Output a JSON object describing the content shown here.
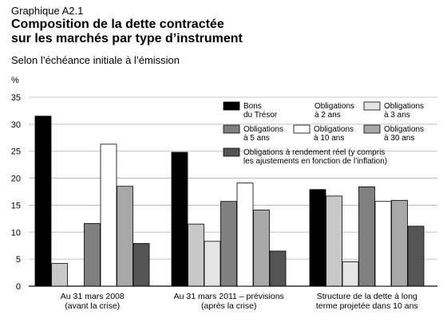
{
  "graphic_label": "Graphique  A2.1",
  "title_line1": "Composition de la dette contractée",
  "title_line2": "sur les marchés par type d’instrument",
  "subtitle": "Selon l’échéance initiale à l’émission",
  "chart_data": {
    "type": "bar",
    "ylabel": "%",
    "ylim": [
      0,
      35
    ],
    "yticks": [
      0,
      5,
      10,
      15,
      20,
      25,
      30,
      35
    ],
    "grid": true,
    "legend_position": "top-right",
    "categories": [
      [
        "Au 31 mars 2008",
        "(avant la crise)"
      ],
      [
        "Au 31 mars 2011 – prévisions",
        "(après la crise)"
      ],
      [
        "Structure de la dette à long",
        "terme projetée dans 10 ans"
      ]
    ],
    "series": [
      {
        "name": [
          "Bons",
          "du Trésor"
        ],
        "color": "#000000",
        "values": [
          31.5,
          24.8,
          17.9
        ]
      },
      {
        "name": [
          "Obligations",
          "à 2 ans"
        ],
        "color": "#c8c8c8",
        "values": [
          4.2,
          11.5,
          16.7
        ]
      },
      {
        "name": [
          "Obligations",
          "à 3 ans"
        ],
        "color": "#e4e4e4",
        "values": [
          0,
          8.3,
          4.5
        ]
      },
      {
        "name": [
          "Obligations",
          "à 5 ans"
        ],
        "color": "#808080",
        "values": [
          11.6,
          15.7,
          18.4
        ]
      },
      {
        "name": [
          "Obligations",
          "à 10 ans"
        ],
        "color": "#ffffff",
        "values": [
          26.3,
          19.1,
          15.7
        ]
      },
      {
        "name": [
          "Obligations",
          "à 30 ans"
        ],
        "color": "#a8a8a8",
        "values": [
          18.5,
          14.1,
          15.9
        ]
      },
      {
        "name": [
          "Obligations à rendement réel (y compris",
          "les ajustements en fonction de l’inflation)"
        ],
        "color": "#555555",
        "values": [
          7.9,
          6.5,
          11.1
        ]
      }
    ]
  }
}
